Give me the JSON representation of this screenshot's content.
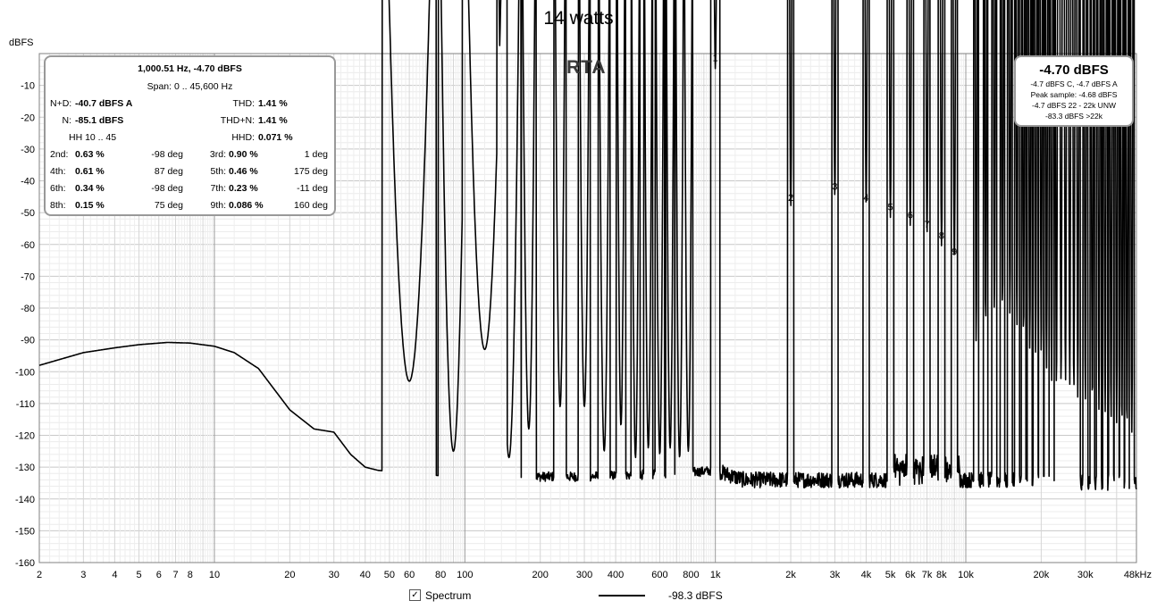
{
  "chart_data": {
    "type": "line",
    "title": "14 watts",
    "subtitle": "RTA",
    "ylabel": "dBFS",
    "xlabel": "",
    "x_scale": "log",
    "xlim": [
      2,
      48000
    ],
    "ylim": [
      -160,
      0
    ],
    "grid": true,
    "y_ticks": [
      -10,
      -20,
      -30,
      -40,
      -50,
      -60,
      -70,
      -80,
      -90,
      -100,
      -110,
      -120,
      -130,
      -140,
      -150,
      -160
    ],
    "y_tick_labels": [
      "-10",
      "-20",
      "-30",
      "-40",
      "-50",
      "-60",
      "-70",
      "-80",
      "-90",
      "-100",
      "-110",
      "-120",
      "-130",
      "-140",
      "-150",
      "-160"
    ],
    "x_ticks": [
      2,
      3,
      4,
      5,
      6,
      7,
      8,
      10,
      20,
      30,
      40,
      50,
      60,
      80,
      100,
      200,
      300,
      400,
      600,
      800,
      1000,
      2000,
      3000,
      4000,
      5000,
      6000,
      7000,
      8000,
      10000,
      20000,
      30000,
      48000
    ],
    "x_tick_labels": [
      "2",
      "3",
      "4",
      "5",
      "6",
      "7",
      "8",
      "10",
      "20",
      "30",
      "40",
      "50",
      "60",
      "80",
      "100",
      "200",
      "300",
      "400",
      "600",
      "800",
      "1k",
      "2k",
      "3k",
      "4k",
      "5k",
      "6k",
      "7k",
      "8k",
      "10k",
      "20k",
      "30k",
      "48kHz"
    ],
    "noise_floor": [
      [
        2,
        -98
      ],
      [
        3,
        -94
      ],
      [
        4,
        -92.5
      ],
      [
        5,
        -91.5
      ],
      [
        6.5,
        -90.8
      ],
      [
        8,
        -91
      ],
      [
        10,
        -92
      ],
      [
        12,
        -94
      ],
      [
        15,
        -99
      ],
      [
        20,
        -112
      ],
      [
        25,
        -118
      ],
      [
        30,
        -119
      ],
      [
        35,
        -126
      ],
      [
        40,
        -130
      ],
      [
        45,
        -131
      ],
      [
        60,
        -132
      ],
      [
        90,
        -133
      ],
      [
        110,
        -134
      ],
      [
        150,
        -133
      ],
      [
        300,
        -133
      ],
      [
        700,
        -132
      ],
      [
        1000,
        -131
      ],
      [
        1300,
        -134
      ],
      [
        3000,
        -134
      ],
      [
        10000,
        -134
      ],
      [
        48000,
        -135
      ]
    ],
    "peaks": [
      {
        "f": 60,
        "level": -103,
        "width": 0.018
      },
      {
        "f": 90,
        "level": -125,
        "width": 0.01
      },
      {
        "f": 120,
        "level": -93,
        "width": 0.015
      },
      {
        "f": 150,
        "level": -127,
        "width": 0.008
      },
      {
        "f": 180,
        "level": -118,
        "width": 0.005
      },
      {
        "f": 240,
        "level": -111,
        "width": 0.004
      },
      {
        "f": 300,
        "level": -111,
        "width": 0.004
      },
      {
        "f": 360,
        "level": -125,
        "width": 0.004
      },
      {
        "f": 420,
        "level": -117,
        "width": 0.003
      },
      {
        "f": 480,
        "level": -127,
        "width": 0.003
      },
      {
        "f": 540,
        "level": -124,
        "width": 0.003
      },
      {
        "f": 600,
        "level": -126,
        "width": 0.003
      },
      {
        "f": 660,
        "level": -124,
        "width": 0.003
      },
      {
        "f": 720,
        "level": -127,
        "width": 0.003
      },
      {
        "f": 780,
        "level": -125,
        "width": 0.003
      },
      {
        "f": 1000,
        "level": -4.7,
        "width": 0.003
      },
      {
        "f": 2000,
        "level": -48.5,
        "width": 0.002
      },
      {
        "f": 3000,
        "level": -45,
        "width": 0.002
      },
      {
        "f": 4000,
        "level": -48.5,
        "width": 0.002
      },
      {
        "f": 5000,
        "level": -51.5,
        "width": 0.002
      },
      {
        "f": 6000,
        "level": -54,
        "width": 0.002
      },
      {
        "f": 7000,
        "level": -57,
        "width": 0.002
      },
      {
        "f": 8000,
        "level": -60.5,
        "width": 0.002
      },
      {
        "f": 9000,
        "level": -65.5,
        "width": 0.002
      },
      {
        "f": 11000,
        "level": -91,
        "width": 0.0015
      },
      {
        "f": 12000,
        "level": -85,
        "width": 0.0015
      },
      {
        "f": 13000,
        "level": -81,
        "width": 0.0015
      },
      {
        "f": 14000,
        "level": -80,
        "width": 0.0015
      },
      {
        "f": 15000,
        "level": -82,
        "width": 0.0015
      },
      {
        "f": 16000,
        "level": -86,
        "width": 0.0015
      },
      {
        "f": 17000,
        "level": -89,
        "width": 0.0015
      },
      {
        "f": 18000,
        "level": -93,
        "width": 0.0015
      },
      {
        "f": 19000,
        "level": -94,
        "width": 0.0015
      },
      {
        "f": 20000,
        "level": -95,
        "width": 0.0015
      },
      {
        "f": 21000,
        "level": -99,
        "width": 0.0015
      },
      {
        "f": 22000,
        "level": -103,
        "width": 0.0015
      },
      {
        "f": 23000,
        "level": -105,
        "width": 0.0015
      },
      {
        "f": 24000,
        "level": -104,
        "width": 0.0015
      },
      {
        "f": 25000,
        "level": -103,
        "width": 0.0015
      },
      {
        "f": 26000,
        "level": -104,
        "width": 0.0015
      },
      {
        "f": 27000,
        "level": -106,
        "width": 0.0015
      },
      {
        "f": 28000,
        "level": -108,
        "width": 0.0015
      },
      {
        "f": 30000,
        "level": -109,
        "width": 0.0015
      },
      {
        "f": 32000,
        "level": -110,
        "width": 0.0015
      },
      {
        "f": 34000,
        "level": -112,
        "width": 0.0015
      },
      {
        "f": 36000,
        "level": -113,
        "width": 0.0015
      },
      {
        "f": 38000,
        "level": -115,
        "width": 0.0015
      },
      {
        "f": 40000,
        "level": -116,
        "width": 0.0015
      },
      {
        "f": 42000,
        "level": -117,
        "width": 0.0015
      },
      {
        "f": 44000,
        "level": -118,
        "width": 0.0015
      },
      {
        "f": 46000,
        "level": -119,
        "width": 0.0015
      }
    ],
    "harmonic_markers": [
      {
        "label": "1",
        "f": 1000,
        "level": -4.7
      },
      {
        "label": "2",
        "f": 2000,
        "level": -48.5
      },
      {
        "label": "3",
        "f": 3000,
        "level": -45
      },
      {
        "label": "4",
        "f": 4000,
        "level": -48.5
      },
      {
        "label": "5",
        "f": 5000,
        "level": -51.5
      },
      {
        "label": "6",
        "f": 6000,
        "level": -54
      },
      {
        "label": "7",
        "f": 7000,
        "level": -57
      },
      {
        "label": "8",
        "f": 8000,
        "level": -60.5
      },
      {
        "label": "9",
        "f": 9000,
        "level": -65.5
      }
    ],
    "series": [
      {
        "name": "Spectrum",
        "legend_value": "-98.3 dBFS",
        "color": "#000000"
      }
    ]
  },
  "info": {
    "header": "1,000.51 Hz, -4.70 dBFS",
    "span": "Span: 0 .. 45,600 Hz",
    "nd_label": "N+D:",
    "nd_value": "-40.7 dBFS A",
    "thd_label": "THD:",
    "thd_value": "1.41 %",
    "n_label": "N:",
    "n_value": "-85.1 dBFS",
    "thdn_label": "THD+N:",
    "thdn_value": "1.41 %",
    "hh_label": "HH 10 .. 45",
    "hhd_label": "HHD:",
    "hhd_value": "0.071 %",
    "harmonics": [
      {
        "l1": "2nd:",
        "v1": "0.63 %",
        "p1": "-98 deg",
        "l2": "3rd:",
        "v2": "0.90 %",
        "p2": "1 deg"
      },
      {
        "l1": "4th:",
        "v1": "0.61 %",
        "p1": "87 deg",
        "l2": "5th:",
        "v2": "0.46 %",
        "p2": "175 deg"
      },
      {
        "l1": "6th:",
        "v1": "0.34 %",
        "p1": "-98 deg",
        "l2": "7th:",
        "v2": "0.23 %",
        "p2": "-11 deg"
      },
      {
        "l1": "8th:",
        "v1": "0.15 %",
        "p1": "75 deg",
        "l2": "9th:",
        "v2": "0.086 %",
        "p2": "160 deg"
      }
    ]
  },
  "level": {
    "main": "-4.70 dBFS",
    "line1": "-4.7 dBFS C, -4.7 dBFS A",
    "line2": "Peak sample: -4.68 dBFS",
    "line3": "-4.7 dBFS 22 - 22k UNW",
    "line4": "-83.3 dBFS >22k"
  },
  "legend": {
    "checked": "✓",
    "label": "Spectrum",
    "value": "-98.3 dBFS"
  }
}
